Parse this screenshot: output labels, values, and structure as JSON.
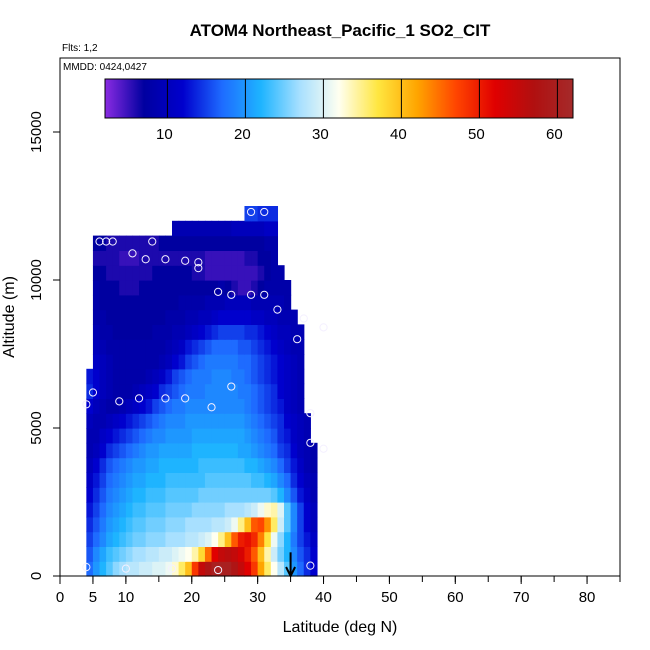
{
  "chart_data": {
    "type": "heatmap",
    "title": "ATOM4 Northeast_Pacific_1 SO2_CIT",
    "annotations": {
      "flights": "Flts: 1,2",
      "dates": "MMDD: 0424,0427"
    },
    "xlabel": "Latitude (deg N)",
    "ylabel": "Altitude (m)",
    "xlim": [
      0,
      85
    ],
    "ylim": [
      0,
      17500
    ],
    "x_ticks": [
      0,
      5,
      10,
      20,
      30,
      40,
      50,
      60,
      70,
      80
    ],
    "x_tick_labels": [
      "0",
      "5",
      "10",
      "20",
      "30",
      "40",
      "50",
      "60",
      "70",
      "80"
    ],
    "y_ticks": [
      0,
      5000,
      10000,
      15000
    ],
    "y_tick_labels": [
      "0",
      "5000",
      "10000",
      "15000"
    ],
    "colorbar": {
      "range": [
        2,
        62
      ],
      "ticks": [
        10,
        20,
        30,
        40,
        50,
        60
      ],
      "tick_labels": [
        "10",
        "20",
        "30",
        "40",
        "50",
        "60"
      ],
      "colors": [
        "#8a2be2",
        "#0000a0",
        "#0000cd",
        "#1e6bff",
        "#1eb4ff",
        "#a8e0ff",
        "#fffff0",
        "#ffe640",
        "#ffa500",
        "#ff4500",
        "#e00000",
        "#b01010",
        "#a52a2a"
      ]
    },
    "grid": false,
    "bins": [
      {
        "altitude_m": 250,
        "lat_start": 4,
        "values": [
          17,
          20,
          22,
          24,
          26,
          27,
          28,
          28,
          29,
          29,
          30,
          30,
          31,
          33,
          36,
          40,
          48,
          55,
          58,
          60,
          60,
          60,
          58,
          55,
          52,
          48,
          42,
          36,
          32,
          28,
          24,
          20,
          17,
          14,
          12
        ]
      },
      {
        "altitude_m": 750,
        "lat_start": 4,
        "values": [
          16,
          19,
          21,
          23,
          24,
          25,
          26,
          27,
          27,
          28,
          28,
          29,
          29,
          30,
          31,
          32,
          34,
          38,
          45,
          52,
          55,
          56,
          55,
          53,
          50,
          46,
          40,
          34,
          29,
          25,
          22,
          19,
          16,
          14,
          12
        ]
      },
      {
        "altitude_m": 1250,
        "lat_start": 4,
        "values": [
          15,
          17,
          19,
          21,
          22,
          23,
          24,
          25,
          25,
          26,
          26,
          26,
          27,
          27,
          27,
          28,
          28,
          29,
          30,
          32,
          35,
          40,
          46,
          50,
          51,
          49,
          44,
          37,
          31,
          26,
          22,
          18,
          15,
          13,
          11
        ]
      },
      {
        "altitude_m": 1750,
        "lat_start": 4,
        "values": [
          14,
          16,
          18,
          20,
          21,
          22,
          23,
          24,
          24,
          25,
          25,
          25,
          26,
          26,
          26,
          27,
          27,
          27,
          27,
          28,
          28,
          29,
          31,
          35,
          40,
          46,
          47,
          43,
          36,
          29,
          24,
          19,
          15,
          12,
          10
        ]
      },
      {
        "altitude_m": 2250,
        "lat_start": 4,
        "values": [
          13,
          15,
          17,
          19,
          20,
          21,
          22,
          23,
          23,
          24,
          24,
          24,
          25,
          25,
          25,
          25,
          26,
          26,
          26,
          26,
          26,
          27,
          27,
          27,
          28,
          29,
          31,
          33,
          34,
          30,
          24,
          19,
          15,
          12,
          10
        ]
      },
      {
        "altitude_m": 2750,
        "lat_start": 4,
        "values": [
          12,
          14,
          16,
          18,
          19,
          20,
          21,
          22,
          22,
          23,
          23,
          23,
          24,
          24,
          24,
          24,
          24,
          25,
          25,
          25,
          25,
          25,
          25,
          25,
          25,
          25,
          25,
          25,
          24,
          22,
          19,
          16,
          13,
          11,
          9
        ]
      },
      {
        "altitude_m": 3250,
        "lat_start": 4,
        "values": [
          11,
          13,
          15,
          17,
          18,
          19,
          20,
          21,
          21,
          22,
          22,
          22,
          23,
          23,
          23,
          23,
          23,
          23,
          24,
          24,
          24,
          24,
          24,
          24,
          24,
          23,
          23,
          22,
          21,
          19,
          17,
          14,
          12,
          10,
          9
        ]
      },
      {
        "altitude_m": 3750,
        "lat_start": 4,
        "values": [
          10,
          12,
          14,
          16,
          17,
          18,
          19,
          20,
          20,
          21,
          21,
          22,
          22,
          22,
          22,
          22,
          22,
          23,
          23,
          23,
          23,
          23,
          23,
          23,
          22,
          22,
          21,
          20,
          19,
          17,
          15,
          13,
          11,
          9,
          8
        ]
      },
      {
        "altitude_m": 4250,
        "lat_start": 4,
        "values": [
          9,
          10,
          12,
          14,
          15,
          16,
          17,
          18,
          19,
          20,
          20,
          21,
          21,
          21,
          21,
          21,
          22,
          22,
          22,
          22,
          22,
          22,
          22,
          21,
          21,
          20,
          19,
          18,
          17,
          15,
          14,
          12,
          10,
          9,
          8
        ]
      },
      {
        "altitude_m": 4750,
        "lat_start": 4,
        "values": [
          9,
          9,
          11,
          12,
          13,
          14,
          15,
          16,
          17,
          18,
          19,
          19,
          20,
          20,
          20,
          20,
          21,
          21,
          21,
          21,
          21,
          21,
          21,
          21,
          20,
          19,
          18,
          17,
          16,
          14,
          13,
          11,
          10,
          9
        ]
      },
      {
        "altitude_m": 5250,
        "lat_start": 4,
        "values": [
          10,
          9,
          9,
          10,
          11,
          12,
          13,
          14,
          15,
          16,
          17,
          18,
          19,
          19,
          19,
          20,
          20,
          20,
          20,
          20,
          20,
          20,
          20,
          20,
          19,
          18,
          17,
          16,
          15,
          14,
          12,
          11,
          10,
          9
        ]
      },
      {
        "altitude_m": 5750,
        "lat_start": 4,
        "values": [
          12,
          10,
          9,
          8,
          8,
          9,
          10,
          11,
          12,
          13,
          15,
          16,
          17,
          18,
          18,
          19,
          19,
          19,
          19,
          19,
          19,
          19,
          19,
          19,
          18,
          17,
          16,
          15,
          14,
          13,
          11,
          10,
          9
        ]
      },
      {
        "altitude_m": 6250,
        "lat_start": 4,
        "values": [
          14,
          12,
          10,
          9,
          8,
          8,
          8,
          9,
          10,
          11,
          12,
          14,
          15,
          16,
          17,
          18,
          18,
          18,
          19,
          19,
          19,
          19,
          19,
          18,
          18,
          17,
          16,
          15,
          14,
          12,
          11,
          10,
          9
        ]
      },
      {
        "altitude_m": 6750,
        "lat_start": 4,
        "values": [
          13,
          12,
          10,
          9,
          8,
          8,
          8,
          8,
          8,
          9,
          10,
          11,
          13,
          15,
          16,
          17,
          18,
          18,
          18,
          19,
          19,
          19,
          18,
          18,
          17,
          16,
          15,
          14,
          13,
          12,
          11,
          10,
          9
        ]
      },
      {
        "altitude_m": 7250,
        "lat_start": 5,
        "values": [
          11,
          10,
          9,
          8,
          8,
          8,
          8,
          8,
          8,
          8,
          9,
          10,
          12,
          13,
          15,
          16,
          17,
          18,
          18,
          18,
          18,
          18,
          17,
          17,
          16,
          15,
          14,
          13,
          12,
          11,
          10,
          9
        ]
      },
      {
        "altitude_m": 7750,
        "lat_start": 5,
        "values": [
          10,
          9,
          8,
          8,
          8,
          8,
          8,
          8,
          8,
          8,
          8,
          9,
          10,
          11,
          13,
          14,
          15,
          16,
          17,
          17,
          17,
          17,
          16,
          16,
          15,
          14,
          13,
          12,
          11,
          10,
          9,
          9
        ]
      },
      {
        "altitude_m": 8250,
        "lat_start": 5,
        "values": [
          9,
          8,
          8,
          7,
          7,
          7,
          7,
          7,
          7,
          8,
          8,
          8,
          9,
          9,
          10,
          11,
          12,
          13,
          14,
          15,
          15,
          15,
          15,
          14,
          14,
          13,
          12,
          11,
          10,
          10,
          9,
          9
        ]
      },
      {
        "altitude_m": 8750,
        "lat_start": 5,
        "values": [
          8,
          8,
          7,
          7,
          7,
          7,
          7,
          7,
          7,
          7,
          7,
          8,
          8,
          8,
          9,
          9,
          10,
          10,
          11,
          12,
          12,
          12,
          12,
          12,
          11,
          11,
          10,
          10,
          9,
          9,
          9
        ]
      },
      {
        "altitude_m": 9250,
        "lat_start": 5,
        "values": [
          8,
          7,
          7,
          7,
          7,
          7,
          7,
          7,
          7,
          7,
          7,
          7,
          7,
          8,
          8,
          8,
          8,
          9,
          9,
          9,
          10,
          10,
          10,
          10,
          9,
          9,
          9,
          9,
          9,
          8
        ]
      },
      {
        "altitude_m": 9750,
        "lat_start": 5,
        "values": [
          8,
          7,
          7,
          7,
          6,
          6,
          6,
          7,
          7,
          7,
          7,
          7,
          7,
          7,
          7,
          7,
          7,
          7,
          7,
          8,
          7,
          6,
          5,
          5,
          6,
          7,
          8,
          8,
          8,
          8
        ]
      },
      {
        "altitude_m": 10250,
        "lat_start": 5,
        "values": [
          7,
          7,
          6,
          6,
          6,
          6,
          6,
          6,
          6,
          7,
          7,
          7,
          7,
          7,
          7,
          6,
          6,
          5,
          5,
          5,
          5,
          5,
          5,
          5,
          5,
          6,
          7,
          8,
          8
        ]
      },
      {
        "altitude_m": 10750,
        "lat_start": 5,
        "values": [
          6,
          6,
          6,
          6,
          5,
          5,
          5,
          6,
          6,
          6,
          6,
          6,
          6,
          6,
          6,
          6,
          6,
          5,
          5,
          5,
          5,
          5,
          5,
          6,
          6,
          7,
          7,
          8
        ]
      },
      {
        "altitude_m": 11250,
        "lat_start": 5,
        "values": [
          7,
          7,
          6,
          6,
          6,
          6,
          6,
          6,
          6,
          6,
          7,
          7,
          7,
          7,
          7,
          7,
          7,
          7,
          7,
          7,
          7,
          7,
          7,
          7,
          7,
          7,
          8,
          8
        ]
      },
      {
        "altitude_m": 11750,
        "lat_start": 17,
        "values": [
          9,
          9,
          9,
          9,
          9,
          9,
          9,
          9,
          9,
          10,
          10,
          10,
          10,
          10,
          11,
          11
        ]
      },
      {
        "altitude_m": 12250,
        "lat_start": 28,
        "values": [
          15,
          15,
          14,
          14,
          14
        ]
      }
    ],
    "sample_points": [
      {
        "lat": 4,
        "alt": 300
      },
      {
        "lat": 10,
        "alt": 250
      },
      {
        "lat": 17,
        "alt": 250
      },
      {
        "lat": 24,
        "alt": 200
      },
      {
        "lat": 38,
        "alt": 350
      },
      {
        "lat": 4,
        "alt": 5800
      },
      {
        "lat": 5,
        "alt": 6200
      },
      {
        "lat": 9,
        "alt": 5900
      },
      {
        "lat": 12,
        "alt": 6000
      },
      {
        "lat": 16,
        "alt": 6000
      },
      {
        "lat": 19,
        "alt": 6000
      },
      {
        "lat": 23,
        "alt": 5700
      },
      {
        "lat": 26,
        "alt": 6400
      },
      {
        "lat": 38,
        "alt": 5500
      },
      {
        "lat": 38,
        "alt": 4500
      },
      {
        "lat": 40,
        "alt": 4300
      },
      {
        "lat": 36,
        "alt": 8000
      },
      {
        "lat": 37,
        "alt": 8700
      },
      {
        "lat": 40,
        "alt": 8400
      },
      {
        "lat": 33,
        "alt": 9000
      },
      {
        "lat": 24,
        "alt": 9600
      },
      {
        "lat": 26,
        "alt": 9500
      },
      {
        "lat": 29,
        "alt": 9500
      },
      {
        "lat": 31,
        "alt": 9500
      },
      {
        "lat": 21,
        "alt": 10400
      },
      {
        "lat": 21,
        "alt": 10600
      },
      {
        "lat": 16,
        "alt": 10700
      },
      {
        "lat": 19,
        "alt": 10650
      },
      {
        "lat": 13,
        "alt": 10700
      },
      {
        "lat": 11,
        "alt": 10900
      },
      {
        "lat": 6,
        "alt": 11300
      },
      {
        "lat": 7,
        "alt": 11300
      },
      {
        "lat": 8,
        "alt": 11300
      },
      {
        "lat": 14,
        "alt": 11300
      },
      {
        "lat": 29,
        "alt": 12300
      },
      {
        "lat": 31,
        "alt": 12300
      }
    ],
    "arrow": {
      "lat": 35,
      "alt_from": 800,
      "alt_to": 0
    }
  }
}
